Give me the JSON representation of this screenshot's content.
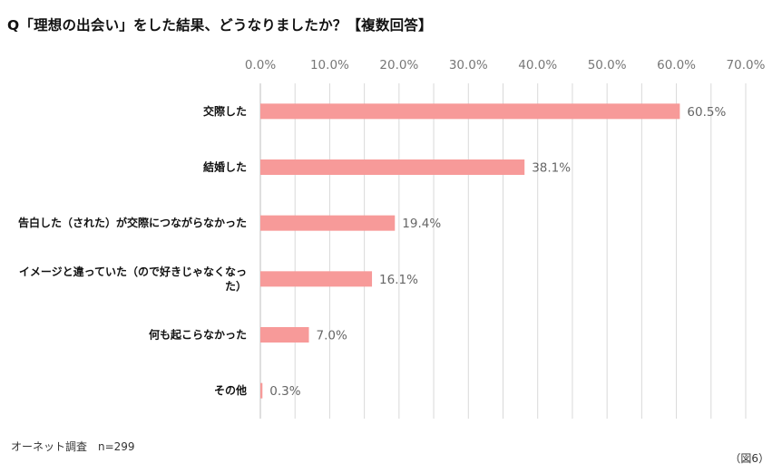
{
  "title": "Q「理想の出会い」をした結果、どうなりましたか？【複数回答】",
  "source": "オーネット調査　n=299",
  "figure_label": "（図6）",
  "colors": {
    "bar": "#f79a99",
    "grid": "#d9d9d9",
    "tick_text": "#777777",
    "label_text": "#111111",
    "value_text": "#666666"
  },
  "chart_data": {
    "type": "bar",
    "orientation": "horizontal",
    "title": "Q「理想の出会い」をした結果、どうなりましたか？【複数回答】",
    "xlabel": "",
    "ylabel": "",
    "xlim": [
      0,
      70
    ],
    "ticks": [
      "0.0%",
      "10.0%",
      "20.0%",
      "30.0%",
      "40.0%",
      "50.0%",
      "60.0%",
      "70.0%"
    ],
    "tick_values": [
      0,
      10,
      20,
      30,
      40,
      50,
      60,
      70
    ],
    "categories": [
      [
        "交際した"
      ],
      [
        "結婚した"
      ],
      [
        "告白した（された）が交際につながらなかった"
      ],
      [
        "イメージと違っていた（ので好きじゃなくなっ",
        "た）"
      ],
      [
        "何も起こらなかった"
      ],
      [
        "その他"
      ]
    ],
    "values": [
      60.5,
      38.1,
      19.4,
      16.1,
      7.0,
      0.3
    ],
    "value_labels": [
      "60.5%",
      "38.1%",
      "19.4%",
      "16.1%",
      "7.0%",
      "0.3%"
    ],
    "grid": true
  }
}
